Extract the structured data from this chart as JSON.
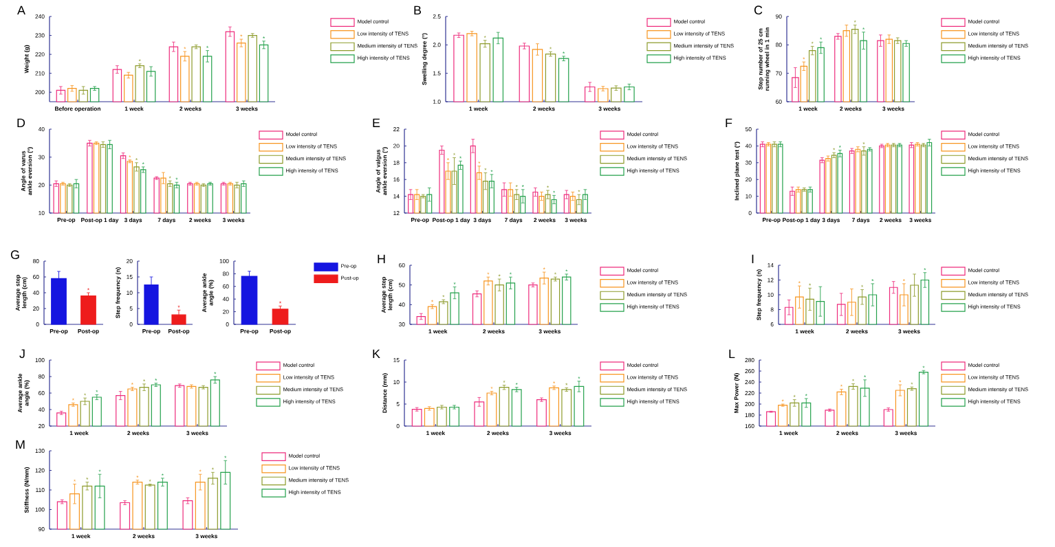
{
  "chart_data": [
    {
      "type": "bar",
      "title": "A",
      "ylabel": "Weight (g)",
      "categories": [
        "Before operation",
        "1 week",
        "2 weeks",
        "3 weeks"
      ],
      "ylim": [
        195,
        240
      ],
      "yticks": [
        200,
        210,
        220,
        230,
        240
      ],
      "legend": "right",
      "series": [
        {
          "name": "Model control",
          "color": "#ee2a7b",
          "values": [
            201,
            212,
            224,
            232
          ],
          "errors": [
            2,
            2,
            2.5,
            2.5
          ]
        },
        {
          "name": "Low intensity of TENS",
          "color": "#f7941d",
          "values": [
            202,
            209,
            219,
            226
          ],
          "errors": [
            1.5,
            1.5,
            2.5,
            2
          ],
          "value_labels": [
            null,
            null,
            "*",
            "*"
          ]
        },
        {
          "name": "Medium intensity of TENS",
          "color": "#8c9a2a",
          "values": [
            201,
            214,
            224,
            230
          ],
          "errors": [
            2,
            1,
            1,
            1
          ],
          "value_labels": [
            null,
            "*",
            null,
            null
          ]
        },
        {
          "name": "High intensity of TENS",
          "color": "#22a04a",
          "values": [
            202,
            211,
            219,
            225
          ],
          "errors": [
            1,
            2.5,
            3,
            2
          ],
          "value_labels": [
            null,
            null,
            "*",
            "*"
          ]
        }
      ]
    },
    {
      "type": "bar",
      "title": "B",
      "ylabel": "Swelling degree (°)",
      "categories": [
        "1 week",
        "2 weeks",
        "3 weeks"
      ],
      "ylim": [
        1.0,
        2.5
      ],
      "yticks": [
        {
          "value": 1.0,
          "label": "1.0"
        },
        {
          "value": 1.5,
          "label": "1.5"
        },
        {
          "value": 2.0,
          "label": "2.0"
        },
        {
          "value": 2.5,
          "label": "2.5"
        }
      ],
      "legend": "right",
      "series": [
        {
          "name": "Model control",
          "color": "#ee2a7b",
          "values": [
            2.17,
            1.98,
            1.26
          ],
          "errors": [
            0.04,
            0.05,
            0.08
          ]
        },
        {
          "name": "Low intensity of TENS",
          "color": "#f7941d",
          "values": [
            2.2,
            1.92,
            1.23
          ],
          "errors": [
            0.04,
            0.1,
            0.04
          ]
        },
        {
          "name": "Medium intensity of TENS",
          "color": "#8c9a2a",
          "values": [
            2.02,
            1.84,
            1.24
          ],
          "errors": [
            0.06,
            0.04,
            0.04
          ],
          "value_labels": [
            "*",
            "*",
            null
          ]
        },
        {
          "name": "High intensity of TENS",
          "color": "#22a04a",
          "values": [
            2.12,
            1.76,
            1.26
          ],
          "errors": [
            0.1,
            0.04,
            0.05
          ],
          "value_labels": [
            null,
            "*",
            null
          ]
        }
      ]
    },
    {
      "type": "bar",
      "title": "C",
      "ylabel": "Step number of 25 cm running wheel in 1 min",
      "categories": [
        "1 week",
        "2 weeks",
        "3 weeks"
      ],
      "ylim": [
        60,
        90
      ],
      "yticks": [
        60,
        70,
        80,
        90
      ],
      "legend": "right",
      "series": [
        {
          "name": "Model control",
          "color": "#ee2a7b",
          "values": [
            68.5,
            83,
            81.5
          ],
          "errors": [
            3.5,
            1,
            2
          ]
        },
        {
          "name": "Low intensity of TENS",
          "color": "#f7941d",
          "values": [
            72.5,
            85,
            82
          ],
          "errors": [
            1.5,
            2,
            1.5
          ],
          "value_labels": [
            "*",
            null,
            null
          ]
        },
        {
          "name": "Medium intensity of TENS",
          "color": "#8c9a2a",
          "values": [
            78,
            85.5,
            81.5
          ],
          "errors": [
            1.5,
            1.5,
            1
          ],
          "value_labels": [
            "*",
            "*",
            null
          ]
        },
        {
          "name": "High intensity of TENS",
          "color": "#22a04a",
          "values": [
            79,
            81.5,
            80.5
          ],
          "errors": [
            2,
            3,
            1
          ],
          "value_labels": [
            "*",
            "*",
            null
          ]
        }
      ]
    },
    {
      "type": "bar",
      "title": "D",
      "ylabel": "Angle of varus ankle eversion (°)",
      "categories": [
        "Pre-op",
        "Post-op 1 day",
        "3 days",
        "7 days",
        "2 weeks",
        "3 weeks"
      ],
      "ylim": [
        10,
        40
      ],
      "yticks": [
        10,
        20,
        30,
        40
      ],
      "legend": "right",
      "series": [
        {
          "name": "Model control",
          "color": "#ee2a7b",
          "values": [
            20.5,
            35,
            30.5,
            22.5,
            20.5,
            20.5
          ],
          "errors": [
            1,
            1,
            1,
            0.5,
            0.5,
            0.5
          ]
        },
        {
          "name": "Low intensity of TENS",
          "color": "#f7941d",
          "values": [
            20.5,
            35,
            28.5,
            22.5,
            20.5,
            20.5
          ],
          "errors": [
            0.5,
            0.5,
            0.5,
            2,
            0.5,
            0.5
          ],
          "value_labels": [
            null,
            null,
            "*",
            null,
            null,
            null
          ]
        },
        {
          "name": "Medium intensity of TENS",
          "color": "#8c9a2a",
          "values": [
            20,
            34.5,
            26.5,
            20.5,
            20,
            20
          ],
          "errors": [
            0.5,
            1,
            1.5,
            1,
            0.5,
            1
          ],
          "value_labels": [
            null,
            null,
            "*",
            "*",
            null,
            null
          ]
        },
        {
          "name": "High intensity of TENS",
          "color": "#22a04a",
          "values": [
            20.5,
            34.5,
            25.5,
            20,
            20.5,
            20.5
          ],
          "errors": [
            1.5,
            1.5,
            1,
            1,
            0.5,
            1
          ],
          "value_labels": [
            null,
            null,
            "*",
            "*",
            null,
            null
          ]
        }
      ]
    },
    {
      "type": "bar",
      "title": "E",
      "ylabel": "Angle of valgus ankle eversion (°)",
      "categories": [
        "Pre-op",
        "Post-op 1 day",
        "3 days",
        "7 days",
        "2 weeks",
        "3 weeks"
      ],
      "ylim": [
        12,
        22
      ],
      "yticks": [
        12,
        14,
        16,
        18,
        20,
        22
      ],
      "legend": "right",
      "series": [
        {
          "name": "Model control",
          "color": "#ee2a7b",
          "values": [
            14.2,
            19.5,
            20,
            14.8,
            14.5,
            14.2
          ],
          "errors": [
            0.6,
            0.5,
            0.8,
            0.8,
            0.5,
            0.5
          ]
        },
        {
          "name": "Low intensity of TENS",
          "color": "#f7941d",
          "values": [
            14.2,
            17,
            16.8,
            14.8,
            14,
            14
          ],
          "errors": [
            0.6,
            1,
            0.8,
            0.8,
            0.5,
            0.5
          ],
          "value_labels": [
            null,
            "*",
            "*",
            null,
            null,
            null
          ]
        },
        {
          "name": "Medium intensity of TENS",
          "color": "#8c9a2a",
          "values": [
            14,
            17,
            15.8,
            14.2,
            14.2,
            13.6
          ],
          "errors": [
            0.2,
            1.6,
            1,
            0.6,
            0.5,
            0.6
          ],
          "value_labels": [
            null,
            "*",
            "*",
            "*",
            "*",
            "*"
          ]
        },
        {
          "name": "High intensity of TENS",
          "color": "#22a04a",
          "values": [
            14.2,
            17.7,
            15.8,
            14,
            13.6,
            14.2
          ],
          "errors": [
            0.8,
            0.5,
            0.8,
            0.8,
            0.5,
            0.6
          ],
          "value_labels": [
            null,
            "*",
            "*",
            "*",
            "*",
            null
          ]
        }
      ]
    },
    {
      "type": "bar",
      "title": "F",
      "ylabel": "Inclined plane test (°)",
      "categories": [
        "Pre-op",
        "Post-op 1 day",
        "3 days",
        "7 days",
        "2 weeks",
        "3 weeks"
      ],
      "ylim": [
        0,
        50
      ],
      "yticks": [
        0,
        10,
        20,
        30,
        40,
        50
      ],
      "legend": "right",
      "series": [
        {
          "name": "Model control",
          "color": "#ee2a7b",
          "values": [
            41,
            13,
            31.5,
            37,
            40,
            40.5
          ],
          "errors": [
            1.5,
            2.5,
            1.5,
            1.5,
            1,
            1.5
          ]
        },
        {
          "name": "Low intensity of TENS",
          "color": "#f7941d",
          "values": [
            41,
            14,
            32.5,
            38,
            40.5,
            41
          ],
          "errors": [
            1,
            1.5,
            1.5,
            1.5,
            1,
            1
          ]
        },
        {
          "name": "Medium intensity of TENS",
          "color": "#8c9a2a",
          "values": [
            41,
            14,
            34.5,
            37,
            40.5,
            40.5
          ],
          "errors": [
            1.5,
            1,
            1.5,
            2.5,
            1,
            1
          ],
          "value_labels": [
            null,
            null,
            "*",
            "*",
            null,
            null
          ]
        },
        {
          "name": "High intensity of TENS",
          "color": "#22a04a",
          "values": [
            41,
            14,
            35.5,
            38,
            40.5,
            42
          ],
          "errors": [
            1.5,
            1.5,
            2,
            1,
            1,
            2
          ],
          "value_labels": [
            null,
            null,
            "*",
            null,
            null,
            null
          ]
        }
      ]
    },
    {
      "type": "bar",
      "title": "G",
      "ylabel": "Average step length (cm)",
      "categories": [
        "Pre-op",
        "Post-op"
      ],
      "ylim": [
        0,
        80
      ],
      "yticks": [
        0,
        20,
        40,
        60,
        80
      ],
      "series": [
        {
          "color": "#1515e0",
          "values": [
            58,
            null
          ],
          "errors": [
            9,
            null
          ]
        },
        {
          "color": "#ee1c1c",
          "values": [
            null,
            36
          ],
          "errors": [
            null,
            4
          ],
          "value_labels": [
            null,
            "*"
          ]
        }
      ]
    },
    {
      "type": "bar",
      "ylabel": "Step frequency (n)",
      "categories": [
        "Pre-op",
        "Post-op"
      ],
      "ylim": [
        0,
        20
      ],
      "yticks": [
        0,
        5,
        10,
        15,
        20
      ],
      "series": [
        {
          "color": "#1515e0",
          "values": [
            12.5,
            null
          ],
          "errors": [
            2.5,
            null
          ]
        },
        {
          "color": "#ee1c1c",
          "values": [
            null,
            3
          ],
          "errors": [
            null,
            1.5
          ],
          "value_labels": [
            null,
            "*"
          ]
        }
      ]
    },
    {
      "type": "bar",
      "ylabel": "Average ankle angle (%)",
      "categories": [
        "Pre-op",
        "Post-op"
      ],
      "ylim": [
        0,
        100
      ],
      "yticks": [
        0,
        20,
        40,
        60,
        80,
        100
      ],
      "legend": "right",
      "series": [
        {
          "name": "Pre-op",
          "color": "#1515e0",
          "values": [
            76,
            null
          ],
          "errors": [
            8,
            null
          ]
        },
        {
          "name": "Post-op",
          "color": "#ee1c1c",
          "values": [
            null,
            24
          ],
          "errors": [
            null,
            5
          ],
          "value_labels": [
            null,
            "*"
          ]
        }
      ]
    },
    {
      "type": "bar",
      "title": "H",
      "ylabel": "Average step length (cm)",
      "categories": [
        "1 week",
        "2 weeks",
        "3 weeks"
      ],
      "ylim": [
        30,
        60
      ],
      "yticks": [
        30,
        40,
        50,
        60
      ],
      "legend": "right",
      "series": [
        {
          "name": "Model control",
          "color": "#ee2a7b",
          "values": [
            34,
            45.5,
            50
          ],
          "errors": [
            1.5,
            1.5,
            1
          ]
        },
        {
          "name": "Low intensity of TENS",
          "color": "#f7941d",
          "values": [
            39,
            52,
            53.5
          ],
          "errors": [
            1,
            2,
            3
          ],
          "value_labels": [
            "*",
            "*",
            "*"
          ]
        },
        {
          "name": "Medium intensity of TENS",
          "color": "#8c9a2a",
          "values": [
            41.5,
            50,
            53
          ],
          "errors": [
            1,
            3,
            1
          ],
          "value_labels": [
            "*",
            "*",
            "*"
          ]
        },
        {
          "name": "High intensity of TENS",
          "color": "#22a04a",
          "values": [
            46,
            51,
            54
          ],
          "errors": [
            3,
            3,
            1.5
          ],
          "value_labels": [
            "*",
            "*",
            "*"
          ]
        }
      ]
    },
    {
      "type": "bar",
      "title": "I",
      "ylabel": "Step frequency (n)",
      "categories": [
        "1 week",
        "2 weeks",
        "3 weeks"
      ],
      "ylim": [
        6,
        14
      ],
      "yticks": [
        6,
        8,
        10,
        12,
        14
      ],
      "legend": "right",
      "series": [
        {
          "name": "Model control",
          "color": "#ee2a7b",
          "values": [
            8.3,
            8.7,
            11
          ],
          "errors": [
            1,
            1.5,
            0.8
          ]
        },
        {
          "name": "Low intensity of TENS",
          "color": "#f7941d",
          "values": [
            9.7,
            9,
            10
          ],
          "errors": [
            1.5,
            1.8,
            1.5
          ],
          "value_labels": [
            "*",
            null,
            "*"
          ]
        },
        {
          "name": "Medium intensity of TENS",
          "color": "#8c9a2a",
          "values": [
            9.4,
            9.7,
            11.3
          ],
          "errors": [
            1.5,
            1,
            1.5
          ],
          "value_labels": [
            "*",
            "*",
            null
          ]
        },
        {
          "name": "High intensity of TENS",
          "color": "#22a04a",
          "values": [
            9.1,
            10,
            12
          ],
          "errors": [
            2,
            1.5,
            1
          ],
          "value_labels": [
            null,
            "*",
            "*"
          ]
        }
      ]
    },
    {
      "type": "bar",
      "title": "J",
      "ylabel": "Average ankle angle (%)",
      "categories": [
        "1 week",
        "2 weeks",
        "3 weeks"
      ],
      "ylim": [
        20,
        100
      ],
      "yticks": [
        20,
        40,
        60,
        80,
        100
      ],
      "legend": "right",
      "series": [
        {
          "name": "Model control",
          "color": "#ee2a7b",
          "values": [
            36,
            57,
            69
          ],
          "errors": [
            2,
            5,
            2
          ]
        },
        {
          "name": "Low intensity of TENS",
          "color": "#f7941d",
          "values": [
            46,
            65,
            68
          ],
          "errors": [
            2,
            2,
            2
          ],
          "value_labels": [
            "*",
            "*",
            null
          ]
        },
        {
          "name": "Medium intensity of TENS",
          "color": "#8c9a2a",
          "values": [
            50,
            67,
            67
          ],
          "errors": [
            4,
            4,
            2
          ],
          "value_labels": [
            "*",
            "*",
            null
          ]
        },
        {
          "name": "High intensity of TENS",
          "color": "#22a04a",
          "values": [
            55,
            70,
            76
          ],
          "errors": [
            3,
            2,
            4
          ],
          "value_labels": [
            "*",
            "*",
            "*"
          ]
        }
      ]
    },
    {
      "type": "bar",
      "title": "K",
      "ylabel": "Distance (mm)",
      "categories": [
        "1 week",
        "2 weeks",
        "3 weeks"
      ],
      "ylim": [
        0,
        15
      ],
      "yticks": [
        0,
        5,
        10,
        15
      ],
      "legend": "right",
      "series": [
        {
          "name": "Model control",
          "color": "#ee2a7b",
          "values": [
            3.8,
            5.5,
            6
          ],
          "errors": [
            0.4,
            1,
            0.4
          ]
        },
        {
          "name": "Low intensity of TENS",
          "color": "#f7941d",
          "values": [
            4,
            7.5,
            8.7
          ],
          "errors": [
            0.4,
            0.4,
            0.4
          ],
          "value_labels": [
            null,
            "*",
            "*"
          ]
        },
        {
          "name": "Medium intensity of TENS",
          "color": "#8c9a2a",
          "values": [
            4.3,
            8.8,
            8.3
          ],
          "errors": [
            0.4,
            0.5,
            0.4
          ],
          "value_labels": [
            null,
            "*",
            "*"
          ]
        },
        {
          "name": "High intensity of TENS",
          "color": "#22a04a",
          "values": [
            4.3,
            8.3,
            9
          ],
          "errors": [
            0.4,
            0.5,
            1.2
          ],
          "value_labels": [
            null,
            "*",
            "*"
          ]
        }
      ]
    },
    {
      "type": "bar",
      "title": "L",
      "ylabel": "Max Power (N)",
      "categories": [
        "1 week",
        "2 weeks",
        "3 weeks"
      ],
      "ylim": [
        160,
        280
      ],
      "yticks": [
        160,
        180,
        200,
        220,
        240,
        260,
        280
      ],
      "legend": "right",
      "series": [
        {
          "name": "Model control",
          "color": "#ee2a7b",
          "values": [
            186,
            189,
            190
          ],
          "errors": [
            1,
            2,
            3
          ]
        },
        {
          "name": "Low intensity of TENS",
          "color": "#f7941d",
          "values": [
            198,
            222,
            225
          ],
          "errors": [
            2,
            5,
            10
          ],
          "value_labels": [
            "*",
            "*",
            "*"
          ]
        },
        {
          "name": "Medium intensity of TENS",
          "color": "#8c9a2a",
          "values": [
            202,
            232,
            228
          ],
          "errors": [
            6,
            5,
            3
          ],
          "value_labels": [
            "*",
            "*",
            "*"
          ]
        },
        {
          "name": "High intensity of TENS",
          "color": "#22a04a",
          "values": [
            202,
            229,
            258
          ],
          "errors": [
            8,
            15,
            3
          ],
          "value_labels": [
            "*",
            "*",
            "*"
          ]
        }
      ]
    },
    {
      "type": "bar",
      "title": "M",
      "ylabel": "Stiffness (N/mm)",
      "categories": [
        "1 week",
        "2 weeks",
        "3 weeks"
      ],
      "ylim": [
        90,
        130
      ],
      "yticks": [
        90,
        100,
        110,
        120,
        130
      ],
      "legend": "right",
      "series": [
        {
          "name": "Model control",
          "color": "#ee2a7b",
          "values": [
            104,
            103.5,
            104.5
          ],
          "errors": [
            1,
            1,
            1.5
          ]
        },
        {
          "name": "Low intensity of TENS",
          "color": "#f7941d",
          "values": [
            108,
            114,
            114
          ],
          "errors": [
            5,
            1,
            4
          ],
          "value_labels": [
            "*",
            "*",
            "*"
          ]
        },
        {
          "name": "Medium intensity of TENS",
          "color": "#8c9a2a",
          "values": [
            112,
            112.5,
            116
          ],
          "errors": [
            2,
            0.5,
            3
          ],
          "value_labels": [
            "*",
            "*",
            "*"
          ]
        },
        {
          "name": "High intensity of TENS",
          "color": "#22a04a",
          "values": [
            112,
            114,
            119
          ],
          "errors": [
            6,
            2,
            6
          ],
          "value_labels": [
            "*",
            "*",
            "*"
          ]
        }
      ]
    }
  ]
}
